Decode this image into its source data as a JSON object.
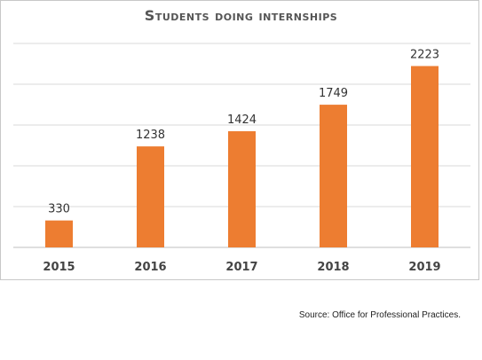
{
  "chart_data": {
    "type": "bar",
    "title": "Students doing internships",
    "categories": [
      "2015",
      "2016",
      "2017",
      "2018",
      "2019"
    ],
    "values": [
      330,
      1238,
      1424,
      1749,
      2223
    ],
    "xlabel": "",
    "ylabel": "",
    "ylim": [
      0,
      2500
    ],
    "grid": true,
    "bar_color": "#ED7D31",
    "data_labels": true
  },
  "source": "Source: Office for Professional Practices."
}
